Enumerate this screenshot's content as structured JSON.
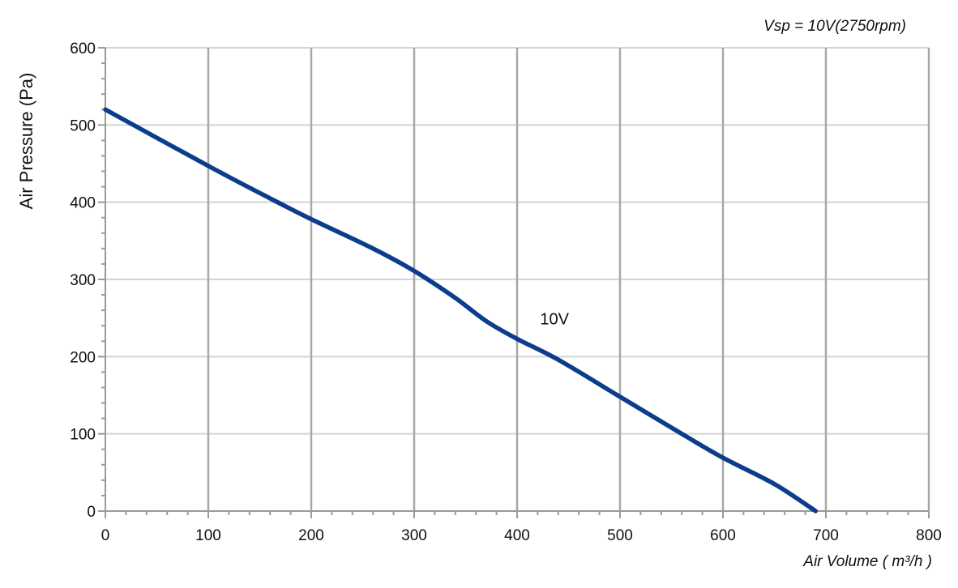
{
  "chart_data": {
    "type": "line",
    "title": "Vsp = 10V(2750rpm)",
    "xlabel": "Air Volume ( m³/h )",
    "ylabel": "Air Pressure  (Pa)",
    "xlim": [
      0,
      800
    ],
    "ylim": [
      0,
      600
    ],
    "x_ticks": [
      "0",
      "100",
      "200",
      "300",
      "400",
      "500",
      "600",
      "700",
      "800"
    ],
    "y_ticks": [
      "0",
      "100",
      "200",
      "300",
      "400",
      "500",
      "600"
    ],
    "grid": true,
    "series": [
      {
        "name": "10V",
        "color": "#0b3d8c",
        "x": [
          0,
          100,
          160,
          200,
          260,
          300,
          340,
          370,
          400,
          440,
          500,
          560,
          600,
          650,
          690
        ],
        "y": [
          520,
          447,
          405,
          378,
          340,
          311,
          276,
          246,
          223,
          196,
          148,
          100,
          69,
          35,
          0
        ]
      }
    ],
    "annotations": [
      {
        "text": "10V",
        "x": 420,
        "y": 245
      }
    ]
  },
  "colors": {
    "grid_vertical": "#a8a8a8",
    "grid_horizontal": "#d4d4d4",
    "axis": "#9a9a9a",
    "text": "#111111"
  }
}
